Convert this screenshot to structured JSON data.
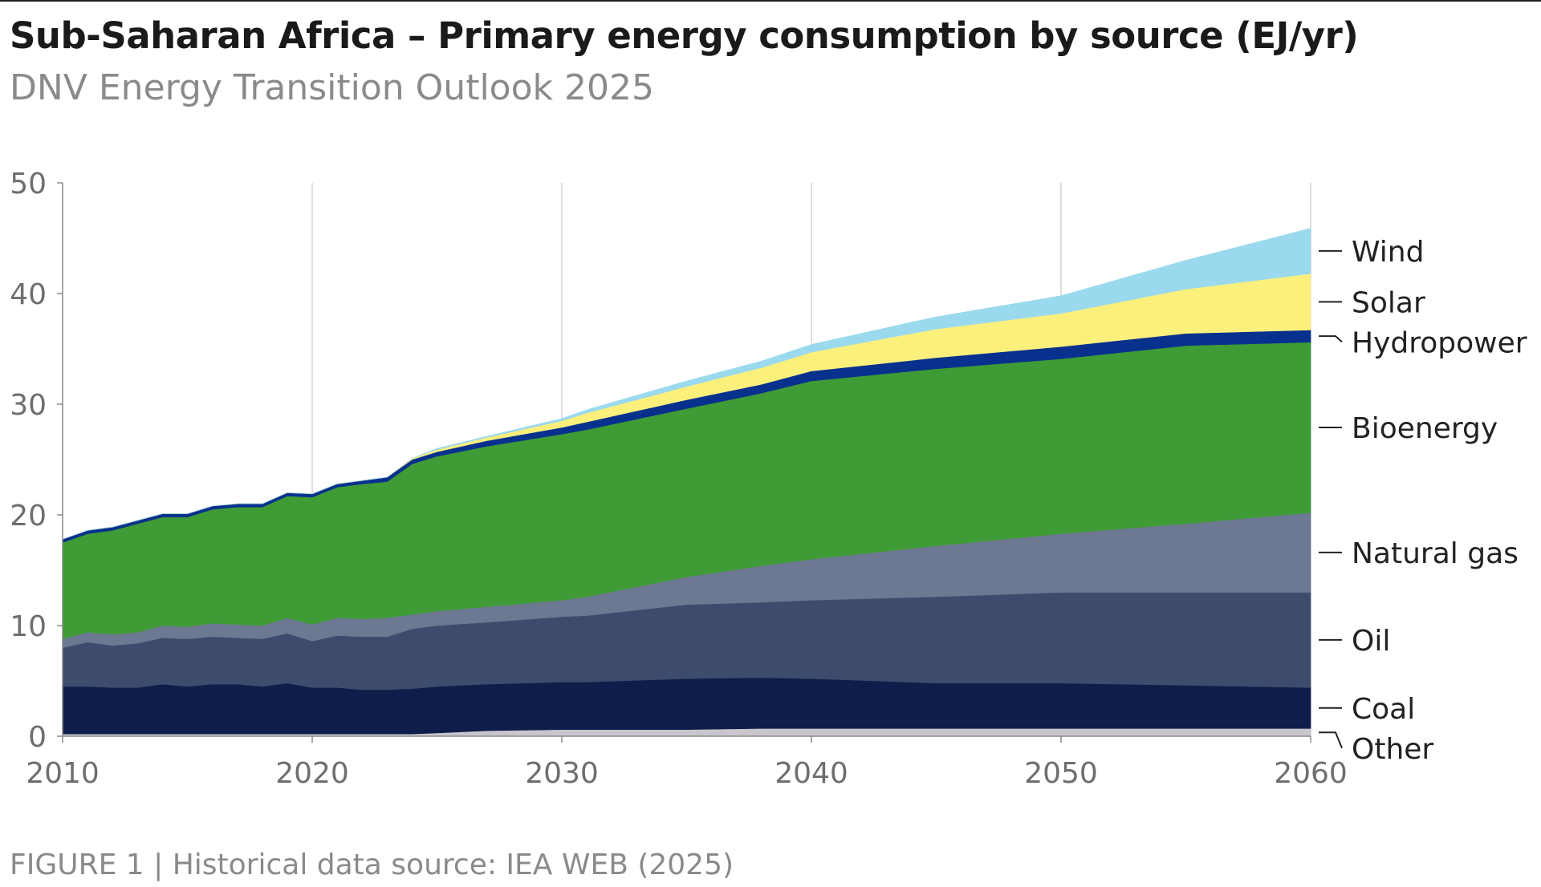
{
  "header": {
    "title": "Sub-Saharan Africa – Primary energy consumption by source (EJ/yr)",
    "subtitle": "DNV Energy Transition Outlook 2025"
  },
  "footer": {
    "note": "FIGURE 1 | Historical data source: IEA WEB (2025)"
  },
  "chart_data": {
    "type": "area",
    "stacked": true,
    "title": "Sub-Saharan Africa – Primary energy consumption by source (EJ/yr)",
    "subtitle": "DNV Energy Transition Outlook 2025",
    "xlabel": "",
    "ylabel": "",
    "xlim": [
      2010,
      2060
    ],
    "ylim": [
      0,
      50
    ],
    "x_ticks": [
      2010,
      2020,
      2030,
      2040,
      2050,
      2060
    ],
    "y_ticks": [
      0,
      10,
      20,
      30,
      40,
      50
    ],
    "grid": "vertical",
    "legend_position": "right",
    "x": [
      2010,
      2011,
      2012,
      2013,
      2014,
      2015,
      2016,
      2017,
      2018,
      2019,
      2020,
      2021,
      2022,
      2023,
      2024,
      2025,
      2027,
      2030,
      2031,
      2035,
      2038,
      2040,
      2045,
      2050,
      2055,
      2060
    ],
    "series": [
      {
        "name": "Other",
        "color": "#c8c6cc",
        "values": [
          0.2,
          0.2,
          0.2,
          0.2,
          0.2,
          0.2,
          0.2,
          0.2,
          0.2,
          0.2,
          0.2,
          0.2,
          0.2,
          0.2,
          0.2,
          0.3,
          0.5,
          0.6,
          0.6,
          0.6,
          0.7,
          0.7,
          0.7,
          0.7,
          0.7,
          0.7
        ]
      },
      {
        "name": "Coal",
        "color": "#0f1d4a",
        "values": [
          4.3,
          4.3,
          4.2,
          4.2,
          4.5,
          4.3,
          4.5,
          4.5,
          4.3,
          4.6,
          4.2,
          4.2,
          4.0,
          4.0,
          4.1,
          4.2,
          4.2,
          4.3,
          4.3,
          4.6,
          4.6,
          4.5,
          4.1,
          4.1,
          3.9,
          3.7
        ]
      },
      {
        "name": "Oil",
        "color": "#3d4c6c",
        "values": [
          3.5,
          4.0,
          3.8,
          4.0,
          4.2,
          4.3,
          4.3,
          4.2,
          4.3,
          4.5,
          4.2,
          4.7,
          4.8,
          4.8,
          5.4,
          5.5,
          5.6,
          5.9,
          6.0,
          6.7,
          6.8,
          7.1,
          7.8,
          8.2,
          8.4,
          8.6
        ]
      },
      {
        "name": "Natural gas",
        "color": "#6d7892",
        "values": [
          0.8,
          0.9,
          1.0,
          1.0,
          1.1,
          1.1,
          1.2,
          1.2,
          1.2,
          1.4,
          1.5,
          1.6,
          1.6,
          1.7,
          1.3,
          1.3,
          1.4,
          1.5,
          1.7,
          2.5,
          3.3,
          3.7,
          4.6,
          5.3,
          6.2,
          7.2
        ]
      },
      {
        "name": "Bioenergy",
        "color": "#3f9b35",
        "values": [
          8.7,
          8.9,
          9.4,
          9.8,
          9.8,
          9.9,
          10.3,
          10.6,
          10.7,
          11.0,
          11.5,
          11.8,
          12.2,
          12.3,
          13.6,
          14.0,
          14.5,
          15.0,
          15.1,
          15.2,
          15.6,
          16.1,
          16.0,
          15.8,
          16.1,
          15.4
        ]
      },
      {
        "name": "Hydropower",
        "color": "#08318e",
        "values": [
          0.3,
          0.3,
          0.3,
          0.3,
          0.3,
          0.3,
          0.3,
          0.3,
          0.3,
          0.3,
          0.3,
          0.3,
          0.3,
          0.4,
          0.4,
          0.4,
          0.5,
          0.6,
          0.7,
          0.8,
          0.8,
          0.9,
          1.0,
          1.1,
          1.1,
          1.1
        ]
      },
      {
        "name": "Solar",
        "color": "#fcf07c",
        "values": [
          0.0,
          0.0,
          0.0,
          0.0,
          0.0,
          0.0,
          0.0,
          0.0,
          0.0,
          0.0,
          0.0,
          0.0,
          0.0,
          0.0,
          0.1,
          0.2,
          0.3,
          0.6,
          0.8,
          1.2,
          1.5,
          1.7,
          2.6,
          3.0,
          4.0,
          5.1
        ]
      },
      {
        "name": "Wind",
        "color": "#9bd9ee",
        "values": [
          0.0,
          0.0,
          0.0,
          0.0,
          0.0,
          0.0,
          0.0,
          0.0,
          0.0,
          0.0,
          0.0,
          0.0,
          0.0,
          0.0,
          0.0,
          0.1,
          0.1,
          0.2,
          0.3,
          0.5,
          0.6,
          0.7,
          1.1,
          1.6,
          2.6,
          4.1
        ]
      }
    ]
  }
}
